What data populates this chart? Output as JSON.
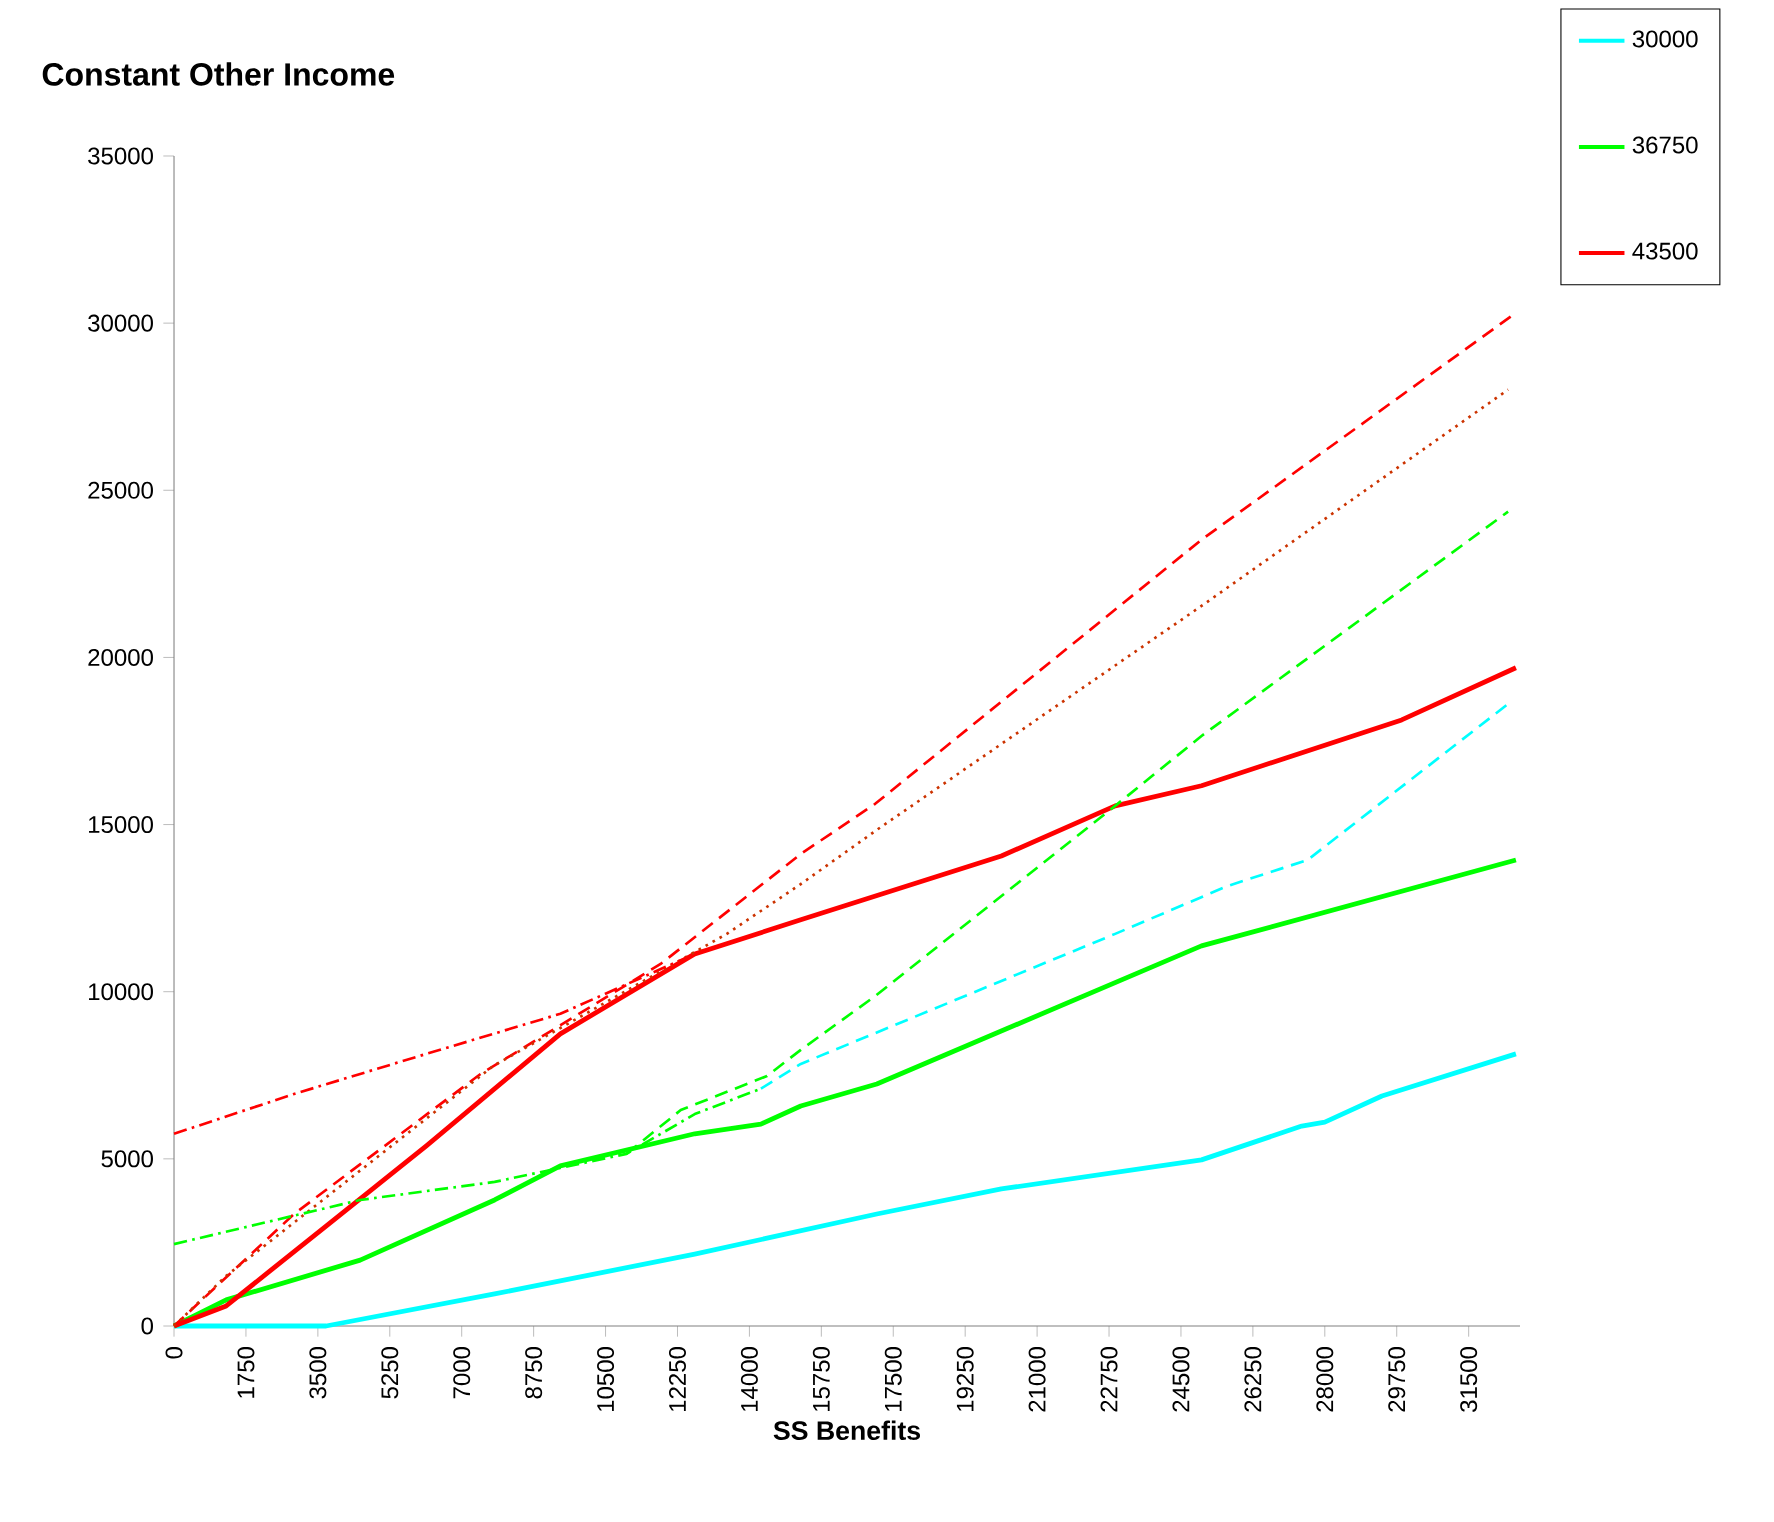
{
  "chart_data": {
    "type": "line",
    "title": "Constant Other Income",
    "xlabel": "SS Benefits",
    "xlim": [
      0,
      32750
    ],
    "ylim": [
      0,
      35000
    ],
    "xticks": [
      0,
      1750,
      3500,
      5250,
      7000,
      8750,
      10500,
      12250,
      14000,
      15750,
      17500,
      19250,
      21000,
      22750,
      24500,
      26250,
      28000,
      29750,
      31500
    ],
    "yticks": [
      0,
      5000,
      10000,
      15000,
      20000,
      25000,
      30000,
      35000
    ],
    "grid": false,
    "legend": "top right",
    "marker": "none",
    "series": [
      {
        "name": "30000",
        "color": "#00ffff",
        "line_style": "solid",
        "x": [
          0,
          3700,
          7800,
          12670,
          17100,
          20130,
          25000,
          27440,
          28000,
          29390,
          32650
        ],
        "values": [
          0,
          0,
          960,
          2150,
          3350,
          4100,
          4970,
          5980,
          6100,
          6880,
          8140
        ]
      },
      {
        "name": "36750",
        "color": "#00ff00",
        "line_style": "solid",
        "x": [
          0,
          1270,
          4530,
          7800,
          9400,
          12670,
          14280,
          15250,
          17100,
          25000,
          32650
        ],
        "values": [
          0,
          780,
          1970,
          3770,
          4790,
          5750,
          6040,
          6580,
          7240,
          11370,
          13940
        ]
      },
      {
        "name": "43500",
        "color": "#ff0000",
        "line_style": "solid",
        "x": [
          0,
          1270,
          3700,
          6140,
          9400,
          12670,
          15250,
          20130,
          22900,
          25000,
          29870,
          32650
        ],
        "values": [
          0,
          600,
          2990,
          5390,
          8740,
          11130,
          12150,
          14060,
          15560,
          16160,
          18130,
          19690
        ]
      },
      {
        "color": "#ff0000",
        "line_style": "dashed",
        "x": [
          0,
          2920,
          7460,
          11840,
          15250,
          17060,
          25000,
          32550
        ],
        "values": [
          0,
          3350,
          7540,
          10830,
          14120,
          15620,
          23520,
          30220
        ]
      },
      {
        "color": "#cc3300",
        "line_style": "dotted",
        "x": [
          0,
          1270,
          7770,
          13450,
          15250,
          17100,
          25000,
          32460
        ],
        "values": [
          0,
          1500,
          7780,
          11730,
          13220,
          14840,
          21540,
          28010
        ]
      },
      {
        "color": "#ff0000",
        "line_style": "dashdot",
        "x": [
          0,
          2920,
          6140,
          9400,
          12670
        ],
        "values": [
          5750,
          6940,
          8140,
          9340,
          11130
        ]
      },
      {
        "color": "#00ff00",
        "line_style": "dashdot",
        "x": [
          0,
          4530,
          7800,
          11010,
          12670,
          14280
        ],
        "values": [
          2450,
          3770,
          4310,
          5150,
          6340,
          7100
        ]
      },
      {
        "color": "#00ff00",
        "line_style": "dashed",
        "x": [
          11010,
          12330,
          14430,
          15250,
          17060,
          22900,
          25000,
          32460
        ],
        "values": [
          5150,
          6460,
          7480,
          8260,
          9870,
          15560,
          17650,
          24360
        ]
      },
      {
        "color": "#00ffff",
        "line_style": "dashed",
        "x": [
          14280,
          15250,
          22900,
          25630,
          27580,
          32460
        ],
        "values": [
          7100,
          7840,
          11730,
          13160,
          13940,
          18610
        ]
      }
    ]
  }
}
